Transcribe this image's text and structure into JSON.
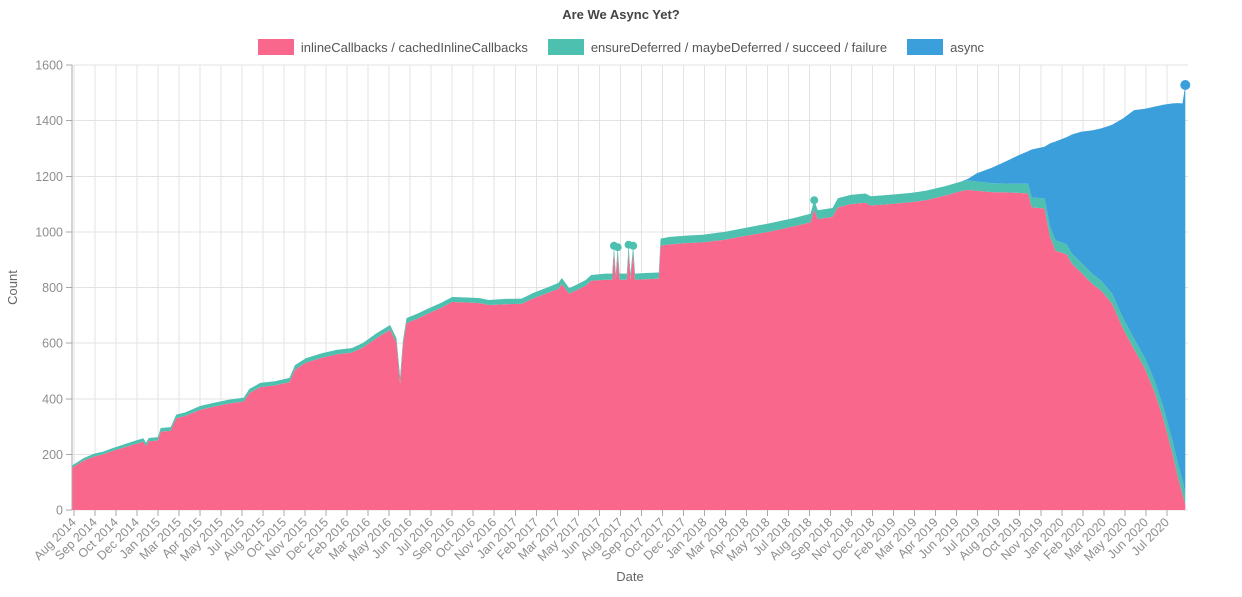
{
  "title": "Are We Async Yet?",
  "legend": {
    "items": [
      {
        "label": "inlineCallbacks / cachedInlineCallbacks",
        "color": "#F9688C"
      },
      {
        "label": "ensureDeferred / maybeDeferred / succeed / failure",
        "color": "#4DC0AF"
      },
      {
        "label": "async",
        "color": "#3B9FDC"
      }
    ]
  },
  "axes": {
    "x_label": "Date",
    "y_label": "Count"
  },
  "chart_data": {
    "type": "area",
    "stacked": true,
    "grid": true,
    "legend_position": "top",
    "title": "Are We Async Yet?",
    "xlabel": "Date",
    "ylabel": "Count",
    "ylim": [
      0,
      1600
    ],
    "y_ticks": [
      0,
      200,
      400,
      600,
      800,
      1000,
      1200,
      1400,
      1600
    ],
    "x_domain": [
      2014.58,
      2020.685
    ],
    "x_tick_start": 2014.59,
    "x_tick_step": 0.11499,
    "x_tick_labels": [
      "Aug 2014",
      "Sep 2014",
      "Oct 2014",
      "Dec 2014",
      "Jan 2015",
      "Mar 2015",
      "Apr 2015",
      "May 2015",
      "Jul 2015",
      "Aug 2015",
      "Oct 2015",
      "Nov 2015",
      "Dec 2015",
      "Feb 2016",
      "Mar 2016",
      "May 2016",
      "Jun 2016",
      "Jul 2016",
      "Sep 2016",
      "Oct 2016",
      "Nov 2016",
      "Jan 2017",
      "Feb 2017",
      "Mar 2017",
      "May 2017",
      "Jun 2017",
      "Aug 2017",
      "Sep 2017",
      "Oct 2017",
      "Dec 2017",
      "Jan 2018",
      "Mar 2018",
      "Apr 2018",
      "May 2018",
      "Jul 2018",
      "Aug 2018",
      "Sep 2018",
      "Nov 2018",
      "Dec 2018",
      "Feb 2019",
      "Mar 2019",
      "Apr 2019",
      "Jun 2019",
      "Jul 2019",
      "Aug 2019",
      "Oct 2019",
      "Nov 2019",
      "Jan 2020",
      "Feb 2020",
      "Mar 2020",
      "May 2020",
      "Jun 2020",
      "Jul 2020"
    ],
    "x": [
      2014.58,
      2014.645,
      2014.7,
      2014.75,
      2014.8,
      2014.85,
      2014.92,
      2014.97,
      2014.985,
      2015.0,
      2015.05,
      2015.065,
      2015.12,
      2015.15,
      2015.2,
      2015.28,
      2015.36,
      2015.44,
      2015.52,
      2015.55,
      2015.61,
      2015.69,
      2015.77,
      2015.8,
      2015.86,
      2015.95,
      2016.03,
      2016.11,
      2016.17,
      2016.25,
      2016.32,
      2016.355,
      2016.375,
      2016.39,
      2016.41,
      2016.47,
      2016.52,
      2016.6,
      2016.66,
      2016.74,
      2016.81,
      2016.86,
      2016.95,
      2017.04,
      2017.1,
      2017.18,
      2017.24,
      2017.26,
      2017.3,
      2017.34,
      2017.39,
      2017.42,
      2017.5,
      2017.535,
      2017.545,
      2017.555,
      2017.565,
      2017.575,
      2017.615,
      2017.625,
      2017.635,
      2017.65,
      2017.66,
      2017.72,
      2017.79,
      2017.8,
      2017.85,
      2017.95,
      2018.03,
      2018.15,
      2018.26,
      2018.39,
      2018.53,
      2018.62,
      2018.64,
      2018.66,
      2018.74,
      2018.77,
      2018.84,
      2018.92,
      2018.95,
      2019.05,
      2019.17,
      2019.25,
      2019.36,
      2019.44,
      2019.48,
      2019.53,
      2019.61,
      2019.69,
      2019.76,
      2019.81,
      2019.83,
      2019.9,
      2019.93,
      2019.96,
      2020.02,
      2020.05,
      2020.1,
      2020.16,
      2020.21,
      2020.27,
      2020.33,
      2020.39,
      2020.45,
      2020.5,
      2020.55,
      2020.6,
      2020.63,
      2020.655,
      2020.67
    ],
    "series": [
      {
        "name": "inlineCallbacks / cachedInlineCallbacks",
        "color": "#F9688C",
        "values": [
          152,
          178,
          192,
          200,
          212,
          222,
          236,
          246,
          230,
          247,
          250,
          282,
          285,
          330,
          338,
          360,
          372,
          383,
          390,
          420,
          442,
          448,
          460,
          505,
          530,
          548,
          560,
          566,
          584,
          620,
          648,
          600,
          455,
          590,
          672,
          688,
          704,
          727,
          748,
          746,
          744,
          737,
          740,
          741,
          760,
          780,
          795,
          812,
          778,
          790,
          806,
          824,
          828,
          828,
          925,
          828,
          920,
          828,
          828,
          928,
          828,
          924,
          828,
          830,
          832,
          950,
          955,
          960,
          962,
          972,
          985,
          1000,
          1020,
          1034,
          1080,
          1046,
          1054,
          1088,
          1100,
          1105,
          1095,
          1100,
          1107,
          1114,
          1131,
          1146,
          1151,
          1148,
          1143,
          1142,
          1140,
          1138,
          1088,
          1084,
          982,
          932,
          920,
          886,
          854,
          814,
          788,
          742,
          652,
          578,
          508,
          428,
          328,
          203,
          118,
          58,
          20
        ]
      },
      {
        "name": "ensureDeferred / maybeDeferred / succeed / failure",
        "color": "#4DC0AF",
        "values": [
          8,
          9,
          10,
          10,
          10,
          11,
          12,
          12,
          12,
          12,
          12,
          13,
          13,
          13,
          13,
          14,
          14,
          14,
          14,
          15,
          15,
          15,
          15,
          16,
          16,
          16,
          16,
          16,
          16,
          17,
          17,
          18,
          25,
          18,
          18,
          18,
          18,
          18,
          18,
          18,
          18,
          18,
          19,
          19,
          20,
          20,
          21,
          22,
          20,
          20,
          21,
          21,
          22,
          22,
          25,
          22,
          25,
          22,
          22,
          26,
          22,
          26,
          22,
          22,
          22,
          26,
          27,
          27,
          28,
          28,
          29,
          30,
          30,
          31,
          34,
          32,
          32,
          33,
          33,
          33,
          33,
          33,
          33,
          34,
          34,
          34,
          34,
          33,
          32,
          32,
          33,
          35,
          36,
          36,
          38,
          38,
          36,
          36,
          36,
          36,
          36,
          36,
          38,
          38,
          38,
          40,
          42,
          45,
          48,
          50,
          42
        ]
      },
      {
        "name": "async",
        "color": "#3B9FDC",
        "values": [
          0,
          0,
          0,
          0,
          0,
          0,
          0,
          0,
          0,
          0,
          0,
          0,
          0,
          0,
          0,
          0,
          0,
          0,
          0,
          0,
          0,
          0,
          0,
          0,
          0,
          0,
          0,
          0,
          0,
          0,
          0,
          0,
          0,
          0,
          0,
          0,
          0,
          0,
          0,
          0,
          0,
          0,
          0,
          0,
          0,
          0,
          0,
          0,
          0,
          0,
          0,
          0,
          0,
          0,
          0,
          0,
          0,
          0,
          0,
          0,
          0,
          0,
          0,
          0,
          0,
          0,
          0,
          0,
          0,
          0,
          0,
          0,
          0,
          0,
          0,
          0,
          0,
          0,
          0,
          0,
          0,
          0,
          0,
          0,
          0,
          0,
          5,
          30,
          55,
          80,
          103,
          117,
          172,
          186,
          298,
          355,
          384,
          428,
          470,
          515,
          548,
          607,
          718,
          822,
          897,
          982,
          1087,
          1214,
          1297,
          1354,
          1466
        ]
      }
    ],
    "markers": [
      {
        "x": 2017.545,
        "y": 950,
        "color": "#4DC0AF",
        "r": 4
      },
      {
        "x": 2017.565,
        "y": 945,
        "color": "#4DC0AF",
        "r": 4
      },
      {
        "x": 2017.625,
        "y": 954,
        "color": "#4DC0AF",
        "r": 4
      },
      {
        "x": 2017.65,
        "y": 950,
        "color": "#4DC0AF",
        "r": 4
      },
      {
        "x": 2018.64,
        "y": 1114,
        "color": "#4DC0AF",
        "r": 4
      },
      {
        "x": 2020.67,
        "y": 1528,
        "color": "#3B9FDC",
        "r": 5
      }
    ]
  }
}
